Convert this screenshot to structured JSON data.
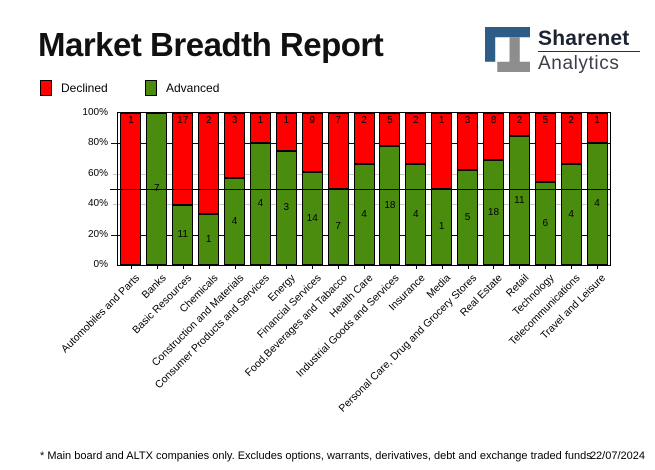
{
  "header": {
    "title": "Market Breadth Report",
    "logo": {
      "line1": "Sharenet",
      "line2": "Analytics",
      "blue": "#2d5c87",
      "gray": "#8d8d8d"
    }
  },
  "legend": {
    "items": [
      "Declined",
      "Advanced"
    ]
  },
  "chart_data": {
    "type": "bar",
    "stacked": true,
    "stack_mode": "percent",
    "title": "Market Breadth Report",
    "xlabel": "",
    "ylabel": "",
    "ylim": [
      0,
      100
    ],
    "y_ticks": [
      {
        "pct": 0,
        "label": "0%"
      },
      {
        "pct": 20,
        "label": "20%"
      },
      {
        "pct": 40,
        "label": "40%"
      },
      {
        "pct": 60,
        "label": "60%"
      },
      {
        "pct": 80,
        "label": "80%"
      },
      {
        "pct": 100,
        "label": "100%"
      }
    ],
    "reference_line_pct": 50,
    "grid": {
      "navy_lines_pct": [
        20,
        80
      ],
      "gray_lines_pct": [
        40,
        60
      ],
      "navy_color": "#000080",
      "gray_color": "#c9c9c9",
      "reference_color": "#000000"
    },
    "legend_position": "top-left",
    "categories": [
      "Automobiles and Parts",
      "Banks",
      "Basic Resources",
      "Chemicals",
      "Construction and Materials",
      "Consumer Products and Services",
      "Energy",
      "Financial Services",
      "Food,Beverages and Tabacco",
      "Health Care",
      "Industrial Goods and Services",
      "Insurance",
      "Media",
      "Personal Care, Drug and Grocery Stores",
      "Real Estate",
      "Retail",
      "Technology",
      "Telecommunications",
      "Travel and Leisure"
    ],
    "series": [
      {
        "name": "Declined",
        "color": "#ff0000",
        "values": [
          1,
          0,
          17,
          2,
          3,
          1,
          1,
          9,
          7,
          2,
          5,
          2,
          1,
          3,
          8,
          2,
          5,
          2,
          1
        ]
      },
      {
        "name": "Advanced",
        "color": "#4a8c0e",
        "values": [
          0,
          7,
          11,
          1,
          4,
          4,
          3,
          14,
          7,
          4,
          18,
          4,
          1,
          5,
          18,
          11,
          6,
          4,
          4
        ]
      }
    ]
  },
  "footer": {
    "note": "* Main board and ALTX companies only. Excludes options, warrants, derivatives, debt and exchange traded funds",
    "date": "22/07/2024"
  }
}
